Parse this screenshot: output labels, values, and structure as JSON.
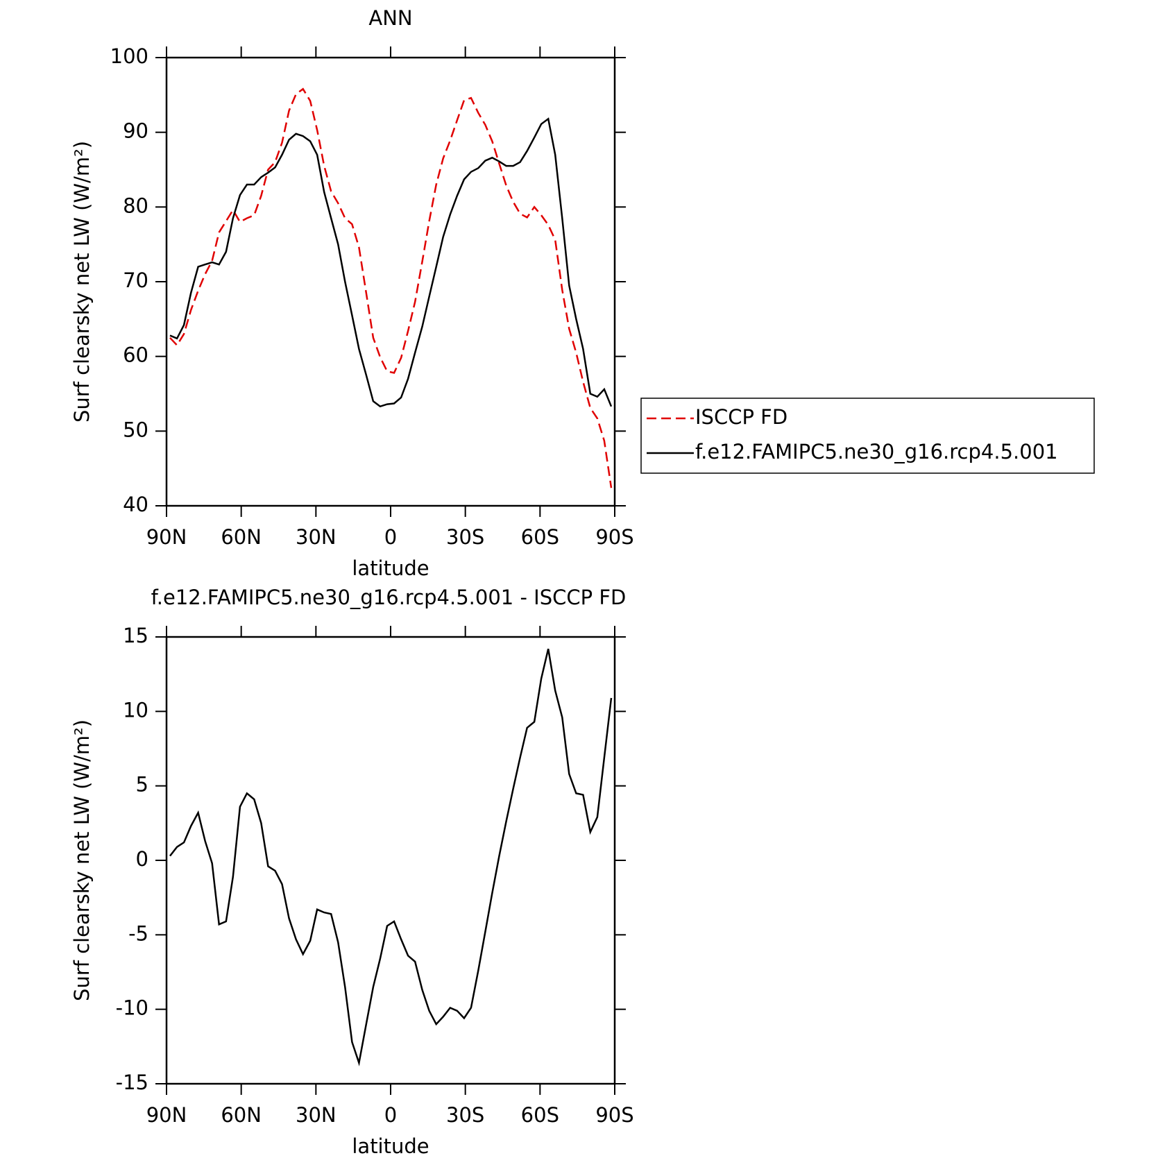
{
  "chart_data": [
    {
      "type": "line",
      "title": "ANN",
      "xlabel": "latitude",
      "ylabel": "Surf clearsky net LW (W/m²)",
      "x": [
        88.6,
        85.8,
        83.0,
        80.2,
        77.3,
        74.5,
        71.7,
        68.9,
        66.1,
        63.3,
        60.5,
        57.7,
        54.8,
        52.0,
        49.2,
        46.4,
        43.6,
        40.8,
        38.0,
        35.2,
        32.3,
        29.5,
        26.7,
        23.9,
        21.1,
        18.3,
        15.5,
        12.7,
        9.8,
        7.0,
        4.2,
        1.4,
        -1.4,
        -4.2,
        -7.0,
        -9.8,
        -12.7,
        -15.5,
        -18.3,
        -21.1,
        -23.9,
        -26.7,
        -29.5,
        -32.3,
        -35.2,
        -38.0,
        -40.8,
        -43.6,
        -46.4,
        -49.2,
        -52.0,
        -54.8,
        -57.7,
        -60.5,
        -63.3,
        -66.1,
        -68.9,
        -71.7,
        -74.5,
        -77.3,
        -80.2,
        -83.0,
        -85.8,
        -88.6
      ],
      "series": [
        {
          "name": "ISCCP FD",
          "color": "#e00000",
          "dash": "dashed",
          "values": [
            62.5,
            61.5,
            63.0,
            66.2,
            68.8,
            71.0,
            72.8,
            76.6,
            78.1,
            79.6,
            78.0,
            78.5,
            78.9,
            81.5,
            85.0,
            86.0,
            88.6,
            92.9,
            95.1,
            95.8,
            94.2,
            90.3,
            85.5,
            82.1,
            80.5,
            78.5,
            77.7,
            74.6,
            68.5,
            62.5,
            59.9,
            58.0,
            57.8,
            59.8,
            63.4,
            67.3,
            72.7,
            78.1,
            83.0,
            86.5,
            88.9,
            91.6,
            94.3,
            94.6,
            92.6,
            91.0,
            88.8,
            85.8,
            82.9,
            80.7,
            79.1,
            78.6,
            80.0,
            78.9,
            77.6,
            75.6,
            68.9,
            63.7,
            60.5,
            56.6,
            53.1,
            51.7,
            48.7,
            42.4
          ]
        },
        {
          "name": "f.e12.FAMIPC5.ne30_g16.rcp4.5.001",
          "color": "#000000",
          "dash": "solid",
          "values": [
            62.8,
            62.4,
            64.2,
            68.5,
            72.0,
            72.3,
            72.6,
            72.3,
            74.0,
            78.5,
            81.6,
            83.0,
            83.0,
            84.0,
            84.6,
            85.3,
            87.0,
            89.0,
            89.8,
            89.5,
            88.8,
            87.0,
            82.0,
            78.5,
            75.0,
            70.0,
            65.5,
            61.0,
            57.5,
            54.0,
            53.3,
            53.6,
            53.7,
            54.5,
            57.0,
            60.5,
            64.0,
            68.0,
            72.0,
            76.0,
            79.0,
            81.5,
            83.7,
            84.7,
            85.2,
            86.2,
            86.6,
            86.1,
            85.5,
            85.5,
            86.0,
            87.5,
            89.3,
            91.1,
            91.8,
            87.0,
            78.5,
            69.5,
            65.0,
            61.0,
            55.0,
            54.6,
            55.6,
            53.3
          ]
        }
      ],
      "xlim": [
        90,
        -90
      ],
      "xticks": [
        {
          "value": 90,
          "label": "90N"
        },
        {
          "value": 60,
          "label": "60N"
        },
        {
          "value": 30,
          "label": "30N"
        },
        0,
        {
          "value": -30,
          "label": "30S"
        },
        {
          "value": -60,
          "label": "60S"
        },
        {
          "value": -90,
          "label": "90S"
        }
      ],
      "ylim": [
        40,
        100
      ],
      "yticks": [
        40,
        50,
        60,
        70,
        80,
        90,
        100
      ],
      "legend": "right"
    },
    {
      "type": "line",
      "title": "f.e12.FAMIPC5.ne30_g16.rcp4.5.001 - ISCCP FD",
      "xlabel": "latitude",
      "ylabel": "Surf clearsky net LW (W/m²)",
      "x": [
        88.6,
        85.8,
        83.0,
        80.2,
        77.3,
        74.5,
        71.7,
        68.9,
        66.1,
        63.3,
        60.5,
        57.7,
        54.8,
        52.0,
        49.2,
        46.4,
        43.6,
        40.8,
        38.0,
        35.2,
        32.3,
        29.5,
        26.7,
        23.9,
        21.1,
        18.3,
        15.5,
        12.7,
        9.8,
        7.0,
        4.2,
        1.4,
        -1.4,
        -4.2,
        -7.0,
        -9.8,
        -12.7,
        -15.5,
        -18.3,
        -21.1,
        -23.9,
        -26.7,
        -29.5,
        -32.3,
        -35.2,
        -38.0,
        -40.8,
        -43.6,
        -46.4,
        -49.2,
        -52.0,
        -54.8,
        -57.7,
        -60.5,
        -63.3,
        -66.1,
        -68.9,
        -71.7,
        -74.5,
        -77.3,
        -80.2,
        -83.0,
        -85.8,
        -88.6
      ],
      "series": [
        {
          "color": "#000000",
          "dash": "solid",
          "values": [
            0.3,
            0.9,
            1.2,
            2.3,
            3.2,
            1.3,
            -0.2,
            -4.3,
            -4.1,
            -1.1,
            3.6,
            4.5,
            4.1,
            2.5,
            -0.4,
            -0.7,
            -1.6,
            -3.9,
            -5.3,
            -6.3,
            -5.4,
            -3.3,
            -3.5,
            -3.6,
            -5.5,
            -8.5,
            -12.2,
            -13.6,
            -11.0,
            -8.5,
            -6.6,
            -4.4,
            -4.1,
            -5.3,
            -6.4,
            -6.8,
            -8.7,
            -10.1,
            -11.0,
            -10.5,
            -9.9,
            -10.1,
            -10.6,
            -9.9,
            -7.4,
            -4.8,
            -2.2,
            0.3,
            2.6,
            4.8,
            6.9,
            8.9,
            9.3,
            12.2,
            14.2,
            11.4,
            9.6,
            5.8,
            4.5,
            4.4,
            1.9,
            2.9,
            6.9,
            10.9
          ]
        }
      ],
      "xlim": [
        90,
        -90
      ],
      "xticks": [
        {
          "value": 90,
          "label": "90N"
        },
        {
          "value": 60,
          "label": "60N"
        },
        {
          "value": 30,
          "label": "30N"
        },
        0,
        {
          "value": -30,
          "label": "30S"
        },
        {
          "value": -60,
          "label": "60S"
        },
        {
          "value": -90,
          "label": "90S"
        }
      ],
      "ylim": [
        -15,
        15
      ],
      "yticks": [
        -15,
        -10,
        -5,
        0,
        5,
        10,
        15
      ]
    }
  ]
}
